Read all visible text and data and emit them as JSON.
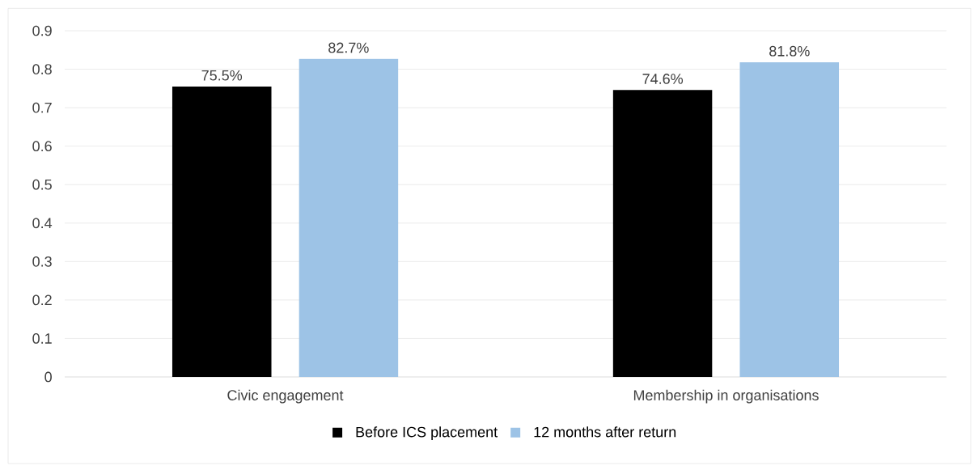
{
  "chart_data": {
    "type": "bar",
    "categories": [
      "Civic engagement",
      "Membership in organisations"
    ],
    "series": [
      {
        "name": "Before ICS placement",
        "color": "#000000",
        "values": [
          0.755,
          0.746
        ],
        "value_labels": [
          "75.5%",
          "74.6%"
        ]
      },
      {
        "name": "12 months after return",
        "color": "#9dc3e6",
        "values": [
          0.827,
          0.818
        ],
        "value_labels": [
          "82.7%",
          "81.8%"
        ]
      }
    ],
    "ylim": [
      0,
      0.9
    ],
    "yticks": [
      0,
      0.1,
      0.2,
      0.3,
      0.4,
      0.5,
      0.6,
      0.7,
      0.8,
      0.9
    ],
    "grid": "y",
    "legend": "bottom"
  }
}
